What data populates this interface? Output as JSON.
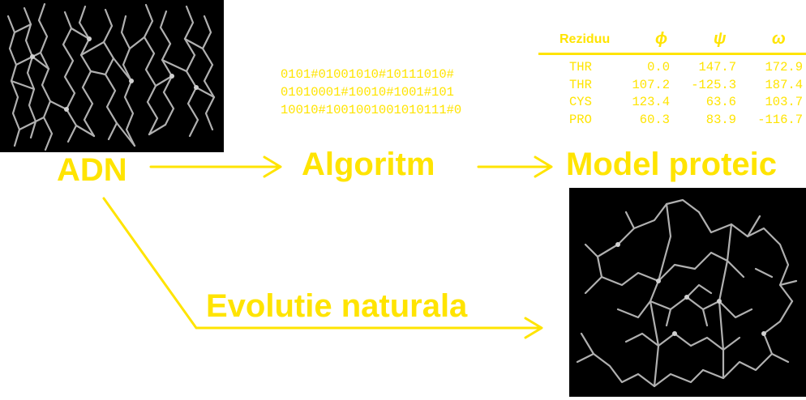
{
  "labels": {
    "dna": "ADN",
    "algorithm": "Algoritm",
    "model": "Model proteic",
    "evolution": "Evolutie naturala"
  },
  "bitstrings": [
    "0101#01001010#10111010#",
    "01010001#10010#1001#101",
    "10010#1001001001010111#0"
  ],
  "table": {
    "headers": {
      "residue": "Reziduu",
      "phi": "ϕ",
      "psi": "ψ",
      "omega": "ω"
    },
    "rows": [
      {
        "residue": "THR",
        "phi": "0.0",
        "psi": "147.7",
        "omega": "172.9"
      },
      {
        "residue": "THR",
        "phi": "107.2",
        "psi": "-125.3",
        "omega": "187.4"
      },
      {
        "residue": "CYS",
        "phi": "123.4",
        "psi": "63.6",
        "omega": "103.7"
      },
      {
        "residue": "PRO",
        "phi": "60.3",
        "psi": "83.9",
        "omega": "-116.7"
      }
    ]
  },
  "colors": {
    "accent": "#FFE400",
    "panel": "#000000",
    "molecule": "#B5B5B5"
  }
}
